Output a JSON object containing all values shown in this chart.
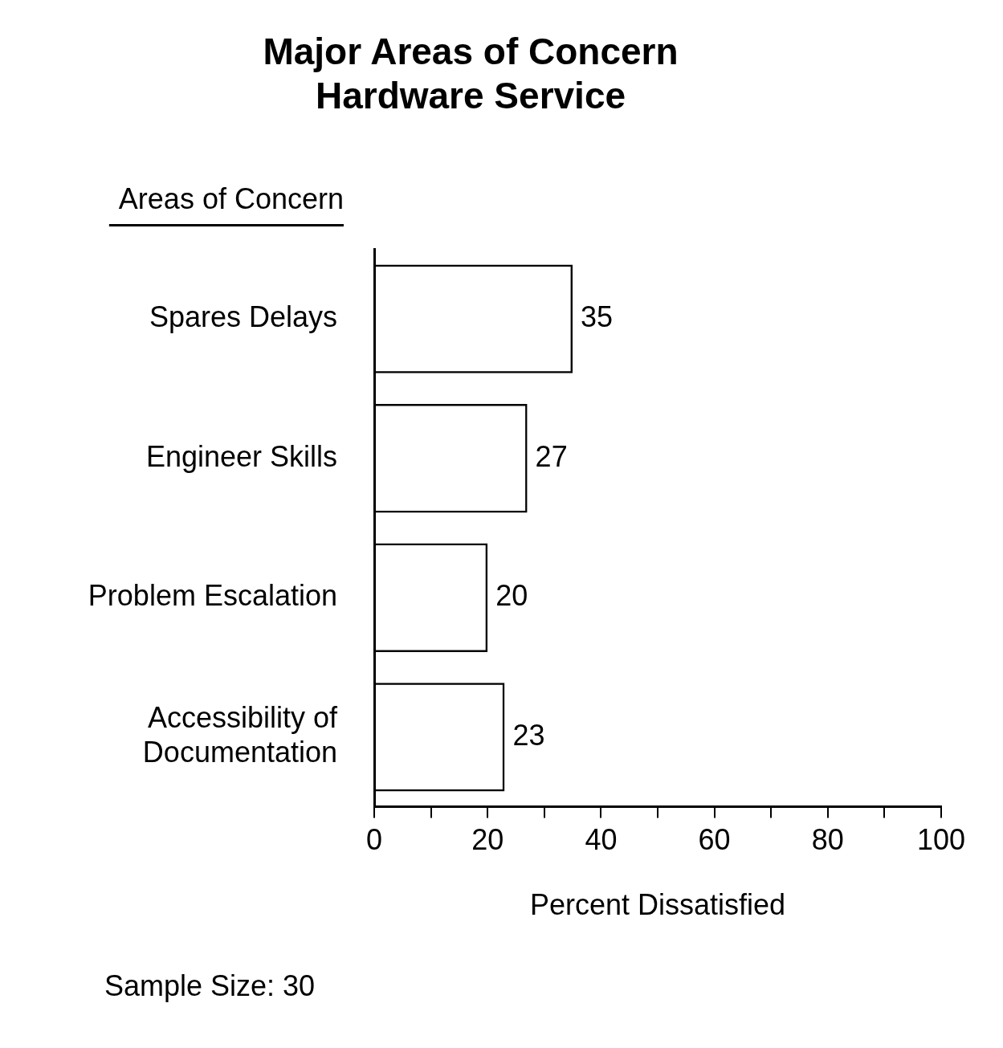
{
  "chart_data": {
    "type": "bar",
    "orientation": "horizontal",
    "title": "Major Areas of Concern",
    "subtitle": "Hardware Service",
    "ylabel": "Areas of Concern",
    "xlabel": "Percent Dissatisfied",
    "categories": [
      "Spares Delays",
      "Engineer Skills",
      "Problem Escalation",
      "Accessibility of Documentation"
    ],
    "values": [
      35,
      27,
      20,
      23
    ],
    "color": "#000000",
    "data_labels": true,
    "xlim": [
      0,
      100
    ],
    "xticks": [
      0,
      {
        "value": 10,
        "label": null
      },
      20,
      {
        "value": 30,
        "label": null
      },
      40,
      {
        "value": 50,
        "label": null
      },
      60,
      {
        "value": 70,
        "label": null
      },
      80,
      {
        "value": 90,
        "label": null
      },
      100
    ],
    "grid": false,
    "legend": false,
    "annotations": [
      "Sample Size: 30"
    ]
  }
}
